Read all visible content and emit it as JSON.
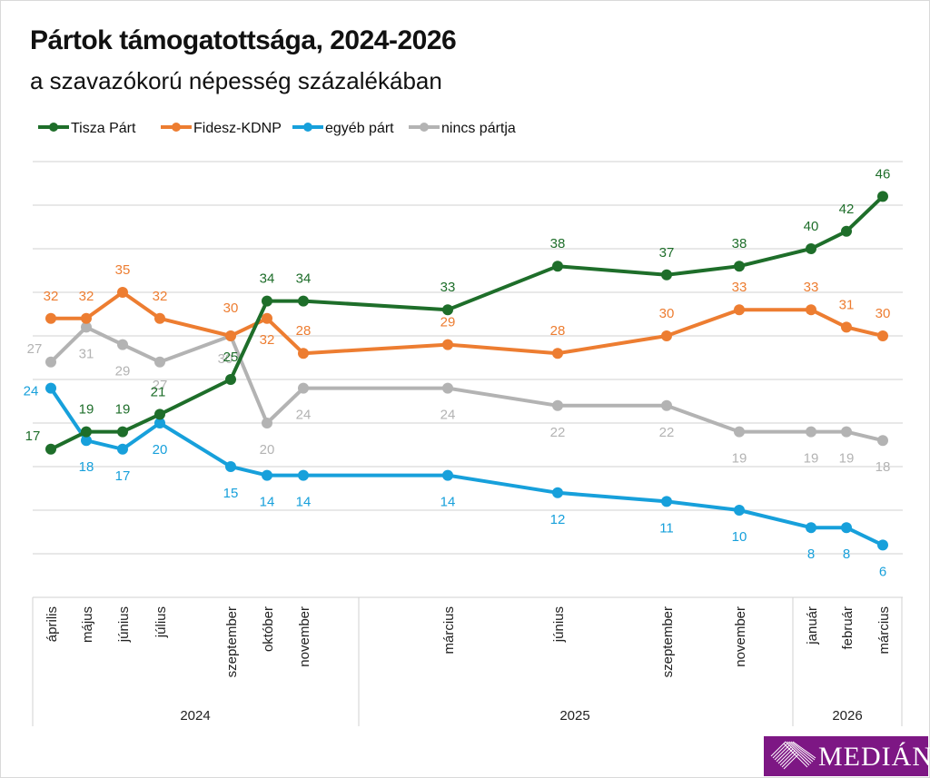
{
  "title": "Pártok támogatottsága, 2024-2026",
  "subtitle": "a szavazókorú népesség százalékában",
  "logo_text": "MEDIÁN",
  "chart_data": {
    "type": "line",
    "title": "Pártok támogatottsága, 2024-2026",
    "subtitle": "a szavazókorú népesség százalékában",
    "xlabel": "",
    "ylabel": "",
    "ylim": [
      0,
      50
    ],
    "grid": true,
    "legend": "top-left",
    "categories": [
      "április",
      "május",
      "június",
      "július",
      "szeptember",
      "október",
      "november",
      "március",
      "június",
      "szeptember",
      "november",
      "január",
      "február",
      "március"
    ],
    "x_positions": [
      0,
      1,
      2,
      3,
      5,
      6,
      7,
      11,
      14,
      17,
      19,
      21,
      22,
      23
    ],
    "year_groups": [
      {
        "label": "2024",
        "from": 0,
        "to": 6
      },
      {
        "label": "2025",
        "from": 7,
        "to": 10
      },
      {
        "label": "2026",
        "from": 11,
        "to": 13
      }
    ],
    "series": [
      {
        "name": "Tisza Párt",
        "color": "#1e6e2a",
        "values": [
          17,
          19,
          19,
          21,
          25,
          34,
          34,
          33,
          38,
          37,
          38,
          40,
          42,
          46
        ]
      },
      {
        "name": "Fidesz-KDNP",
        "color": "#ed7d31",
        "values": [
          32,
          32,
          35,
          32,
          30,
          32,
          28,
          29,
          28,
          30,
          33,
          33,
          31,
          30
        ]
      },
      {
        "name": "egyéb párt",
        "color": "#17a0db",
        "values": [
          24,
          18,
          17,
          20,
          15,
          14,
          14,
          14,
          12,
          11,
          10,
          8,
          8,
          6
        ]
      },
      {
        "name": "nincs pártja",
        "color": "#b3b3b3",
        "values": [
          27,
          31,
          29,
          27,
          30,
          20,
          24,
          24,
          22,
          22,
          19,
          19,
          19,
          18
        ]
      }
    ]
  }
}
